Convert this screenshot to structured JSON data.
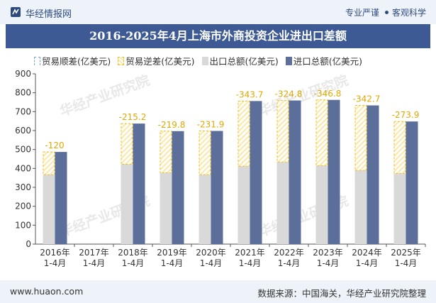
{
  "header": {
    "brand": "华经情报网",
    "slogan_left": "专业严谨",
    "slogan_right": "客观科学"
  },
  "title": "2016-2025年4月上海市外商投资企业进出口差额",
  "legend": [
    {
      "key": "surplus",
      "label": "贸易顺差(亿美元)"
    },
    {
      "key": "deficit",
      "label": "贸易逆差(亿美元)"
    },
    {
      "key": "export",
      "label": "出口总额(亿美元)"
    },
    {
      "key": "import",
      "label": "进口总额(亿美元)"
    }
  ],
  "footer": {
    "site": "www.huaon.com",
    "source": "数据来源：中国海关，华经产业研究院整理"
  },
  "watermark": "华经产业研究院",
  "colors": {
    "export": "#d9d9d9",
    "import": "#5b6f9a",
    "deficit_border": "#f0c020",
    "deficit_fill": "#fbe7a8",
    "label": "#e0a800",
    "title_bg": "#3d5a94"
  },
  "chart_data": {
    "type": "bar",
    "categories": [
      "2016年\n1-4月",
      "2017年\n1-4月",
      "2018年\n1-4月",
      "2019年\n1-4月",
      "2020年\n1-4月",
      "2021年\n1-4月",
      "2022年\n1-4月",
      "2023年\n1-4月",
      "2024年\n1-4月",
      "2025年\n1-4月"
    ],
    "series": [
      {
        "name": "出口总额(亿美元)",
        "values": [
          367,
          null,
          422,
          377,
          367,
          412,
          434,
          415,
          390,
          374
        ]
      },
      {
        "name": "进口总额(亿美元)",
        "values": [
          487,
          null,
          637,
          597,
          598,
          756,
          759,
          762,
          733,
          648
        ]
      },
      {
        "name": "贸易逆差(亿美元)",
        "values": [
          -120,
          null,
          -215.2,
          -219.8,
          -231.9,
          -343.7,
          -324.8,
          -346.8,
          -342.7,
          -273.9
        ]
      },
      {
        "name": "贸易顺差(亿美元)",
        "values": [
          null,
          null,
          null,
          null,
          null,
          null,
          null,
          null,
          null,
          null
        ]
      }
    ],
    "data_labels": [
      "-120",
      "",
      "-215.2",
      "-219.8",
      "-231.9",
      "-343.7",
      "-324.8",
      "-346.8",
      "-342.7",
      "-273.9"
    ],
    "ylim": [
      0,
      900
    ],
    "yticks": [
      0,
      100,
      200,
      300,
      400,
      500,
      600,
      700,
      800,
      900
    ],
    "grid": false,
    "legend_position": "top"
  }
}
